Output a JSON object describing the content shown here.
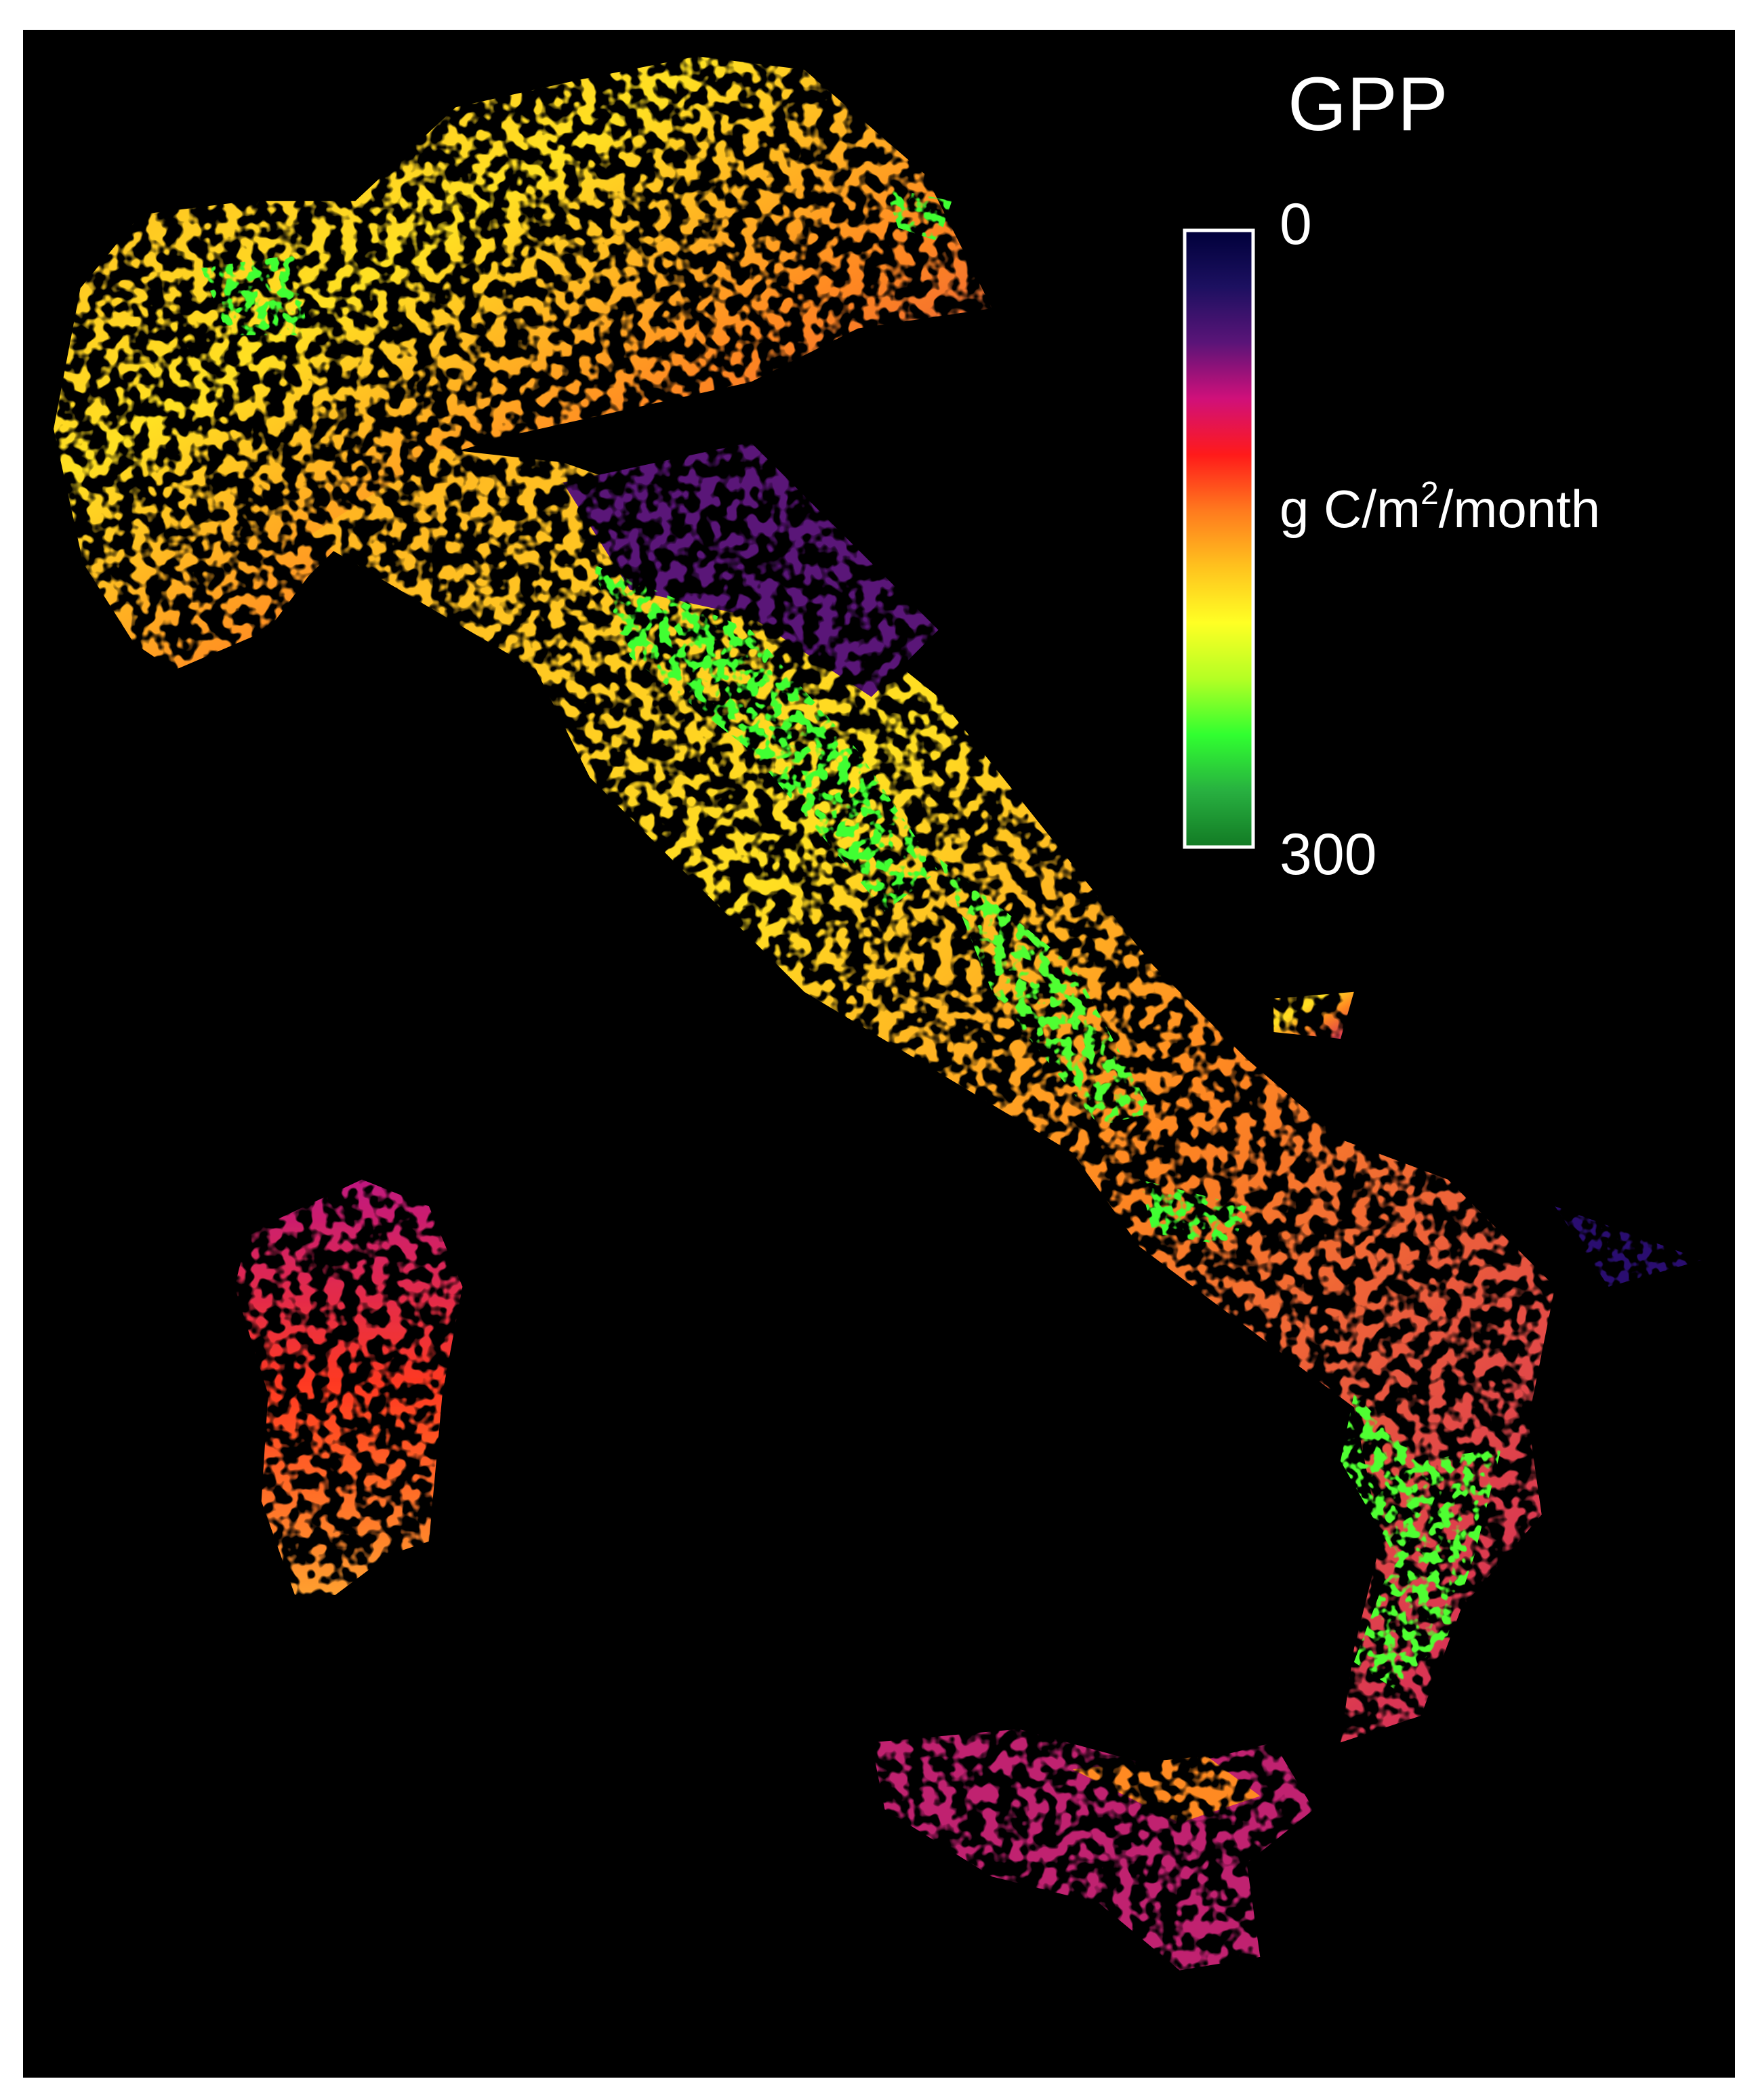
{
  "map": {
    "title": "GPP",
    "colorbar": {
      "min": 0,
      "max": 300,
      "unit": {
        "prefix": "g C/m",
        "sup": "2",
        "suffix": "/month"
      },
      "colors": [
        "#00003a",
        "#1c1060",
        "#5a1478",
        "#d0107a",
        "#ff1a1a",
        "#ff7a1e",
        "#ffc21e",
        "#ffff24",
        "#b4ff24",
        "#30ff30",
        "#28b040",
        "#127a24"
      ]
    }
  }
}
